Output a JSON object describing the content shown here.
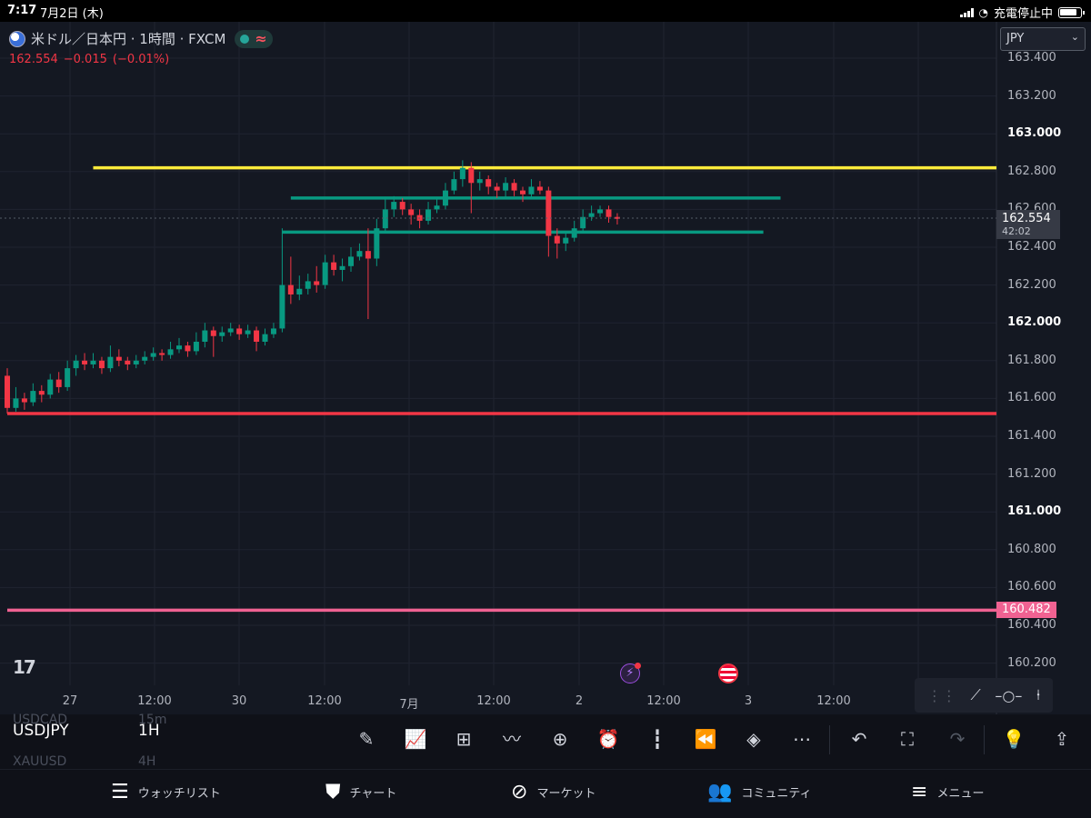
{
  "status_bar": {
    "time": "7:17",
    "date": "7月2日 (木)",
    "charging": "充電停止中"
  },
  "legend": {
    "title": "米ドル／日本円 · 1時間 · FXCM",
    "price": "162.554",
    "change": "−0.015",
    "change_pct": "(−0.01%)"
  },
  "currency": {
    "selected": "JPY"
  },
  "colors": {
    "up": "#089981",
    "down": "#f23645",
    "resistance": "#ffeb3b",
    "support_red": "#f23645",
    "range": "#089981",
    "alert": "#f06292"
  },
  "price_axis": {
    "labels": [
      "163.400",
      "163.200",
      "163.000",
      "162.800",
      "162.600",
      "162.400",
      "162.200",
      "162.000",
      "161.800",
      "161.600",
      "161.400",
      "161.200",
      "161.000",
      "160.800",
      "160.600",
      "160.400",
      "160.200"
    ],
    "bold_labels": [
      "163.000",
      "162.000",
      "161.000"
    ],
    "current_price": "162.554",
    "countdown": "42:02",
    "alert_price": "160.482"
  },
  "time_axis": {
    "labels": [
      "27",
      "12:00",
      "30",
      "12:00",
      "7月",
      "12:00",
      "2",
      "12:00",
      "3",
      "12:00"
    ]
  },
  "logo": "17",
  "toolbar": {
    "symbol": "USDJPY",
    "interval": "1H",
    "ghost_symbols": [
      "USDCAD",
      "XAUUSD"
    ],
    "ghost_intervals": [
      "15m",
      "4H"
    ],
    "icons": [
      "pen-icon",
      "indicators-icon",
      "templates-icon",
      "compare-icon",
      "add-icon",
      "alert-icon",
      "candles-icon",
      "replay-icon",
      "layers-icon",
      "more-icon",
      "undo-icon",
      "fullscreen-icon",
      "redo-icon",
      "ideas-icon",
      "share-icon"
    ]
  },
  "tabs": [
    {
      "label": "ウォッチリスト",
      "icon": "watchlist-icon"
    },
    {
      "label": "チャート",
      "icon": "chart-icon"
    },
    {
      "label": "マーケット",
      "icon": "compass-icon"
    },
    {
      "label": "コミュニティ",
      "icon": "community-icon"
    },
    {
      "label": "メニュー",
      "icon": "menu-icon"
    }
  ],
  "chart_data": {
    "type": "candlestick",
    "symbol": "USDJPY",
    "interval": "1H",
    "ylim": [
      160.1,
      163.5
    ],
    "horizontal_lines": [
      {
        "price": 162.82,
        "color": "#ffeb3b",
        "from_index": 10
      },
      {
        "price": 162.66,
        "color": "#089981",
        "from_index": 33,
        "to_index": 90
      },
      {
        "price": 162.48,
        "color": "#089981",
        "from_index": 32,
        "to_index": 88
      },
      {
        "price": 161.52,
        "color": "#f23645",
        "from_index": 0
      },
      {
        "price": 160.48,
        "color": "#f06292",
        "from_index": 0
      }
    ],
    "candles": [
      [
        161.72,
        161.55,
        161.76,
        161.52
      ],
      [
        161.55,
        161.6,
        161.66,
        161.53
      ],
      [
        161.6,
        161.58,
        161.63,
        161.54
      ],
      [
        161.58,
        161.64,
        161.68,
        161.56
      ],
      [
        161.64,
        161.62,
        161.67,
        161.58
      ],
      [
        161.62,
        161.7,
        161.73,
        161.6
      ],
      [
        161.7,
        161.66,
        161.74,
        161.63
      ],
      [
        161.66,
        161.76,
        161.8,
        161.64
      ],
      [
        161.76,
        161.8,
        161.83,
        161.72
      ],
      [
        161.8,
        161.78,
        161.84,
        161.75
      ],
      [
        161.78,
        161.8,
        161.84,
        161.76
      ],
      [
        161.8,
        161.76,
        161.82,
        161.73
      ],
      [
        161.76,
        161.82,
        161.88,
        161.74
      ],
      [
        161.82,
        161.8,
        161.86,
        161.77
      ],
      [
        161.8,
        161.78,
        161.82,
        161.75
      ],
      [
        161.78,
        161.8,
        161.83,
        161.76
      ],
      [
        161.8,
        161.82,
        161.85,
        161.78
      ],
      [
        161.82,
        161.84,
        161.87,
        161.8
      ],
      [
        161.84,
        161.83,
        161.86,
        161.8
      ],
      [
        161.83,
        161.86,
        161.9,
        161.81
      ],
      [
        161.86,
        161.88,
        161.92,
        161.84
      ],
      [
        161.88,
        161.85,
        161.9,
        161.82
      ],
      [
        161.85,
        161.9,
        161.95,
        161.83
      ],
      [
        161.9,
        161.96,
        162.0,
        161.87
      ],
      [
        161.96,
        161.93,
        161.98,
        161.82
      ],
      [
        161.93,
        161.95,
        161.98,
        161.9
      ],
      [
        161.95,
        161.97,
        162.0,
        161.93
      ],
      [
        161.97,
        161.94,
        161.99,
        161.91
      ],
      [
        161.94,
        161.96,
        161.99,
        161.92
      ],
      [
        161.96,
        161.9,
        161.98,
        161.85
      ],
      [
        161.9,
        161.94,
        161.97,
        161.88
      ],
      [
        161.94,
        161.97,
        162.0,
        161.92
      ],
      [
        161.97,
        162.2,
        162.5,
        161.95
      ],
      [
        162.2,
        162.15,
        162.35,
        162.1
      ],
      [
        162.15,
        162.18,
        162.25,
        162.12
      ],
      [
        162.18,
        162.22,
        162.26,
        162.15
      ],
      [
        162.22,
        162.2,
        162.3,
        162.16
      ],
      [
        162.2,
        162.32,
        162.36,
        162.18
      ],
      [
        162.32,
        162.28,
        162.36,
        162.25
      ],
      [
        162.28,
        162.3,
        162.34,
        162.22
      ],
      [
        162.3,
        162.35,
        162.4,
        162.27
      ],
      [
        162.35,
        162.38,
        162.42,
        162.33
      ],
      [
        162.38,
        162.34,
        162.5,
        162.02
      ],
      [
        162.34,
        162.5,
        162.55,
        162.3
      ],
      [
        162.5,
        162.6,
        162.66,
        162.48
      ],
      [
        162.6,
        162.64,
        162.67,
        162.56
      ],
      [
        162.64,
        162.6,
        162.66,
        162.57
      ],
      [
        162.6,
        162.57,
        162.63,
        162.52
      ],
      [
        162.57,
        162.54,
        162.6,
        162.5
      ],
      [
        162.54,
        162.6,
        162.64,
        162.52
      ],
      [
        162.6,
        162.62,
        162.66,
        162.58
      ],
      [
        162.62,
        162.7,
        162.74,
        162.6
      ],
      [
        162.7,
        162.76,
        162.8,
        162.68
      ],
      [
        162.76,
        162.82,
        162.86,
        162.72
      ],
      [
        162.82,
        162.74,
        162.85,
        162.58
      ],
      [
        162.74,
        162.76,
        162.8,
        162.7
      ],
      [
        162.76,
        162.72,
        162.78,
        162.68
      ],
      [
        162.72,
        162.7,
        162.74,
        162.66
      ],
      [
        162.7,
        162.74,
        162.77,
        162.66
      ],
      [
        162.74,
        162.7,
        162.76,
        162.67
      ],
      [
        162.7,
        162.68,
        162.72,
        162.64
      ],
      [
        162.68,
        162.72,
        162.76,
        162.66
      ],
      [
        162.72,
        162.7,
        162.75,
        162.68
      ],
      [
        162.7,
        162.46,
        162.72,
        162.35
      ],
      [
        162.46,
        162.42,
        162.5,
        162.34
      ],
      [
        162.42,
        162.45,
        162.48,
        162.38
      ],
      [
        162.45,
        162.5,
        162.54,
        162.43
      ],
      [
        162.5,
        162.56,
        162.6,
        162.48
      ],
      [
        162.56,
        162.58,
        162.62,
        162.54
      ],
      [
        162.58,
        162.6,
        162.62,
        162.56
      ],
      [
        162.6,
        162.56,
        162.62,
        162.53
      ],
      [
        162.56,
        162.55,
        162.58,
        162.52
      ]
    ]
  }
}
